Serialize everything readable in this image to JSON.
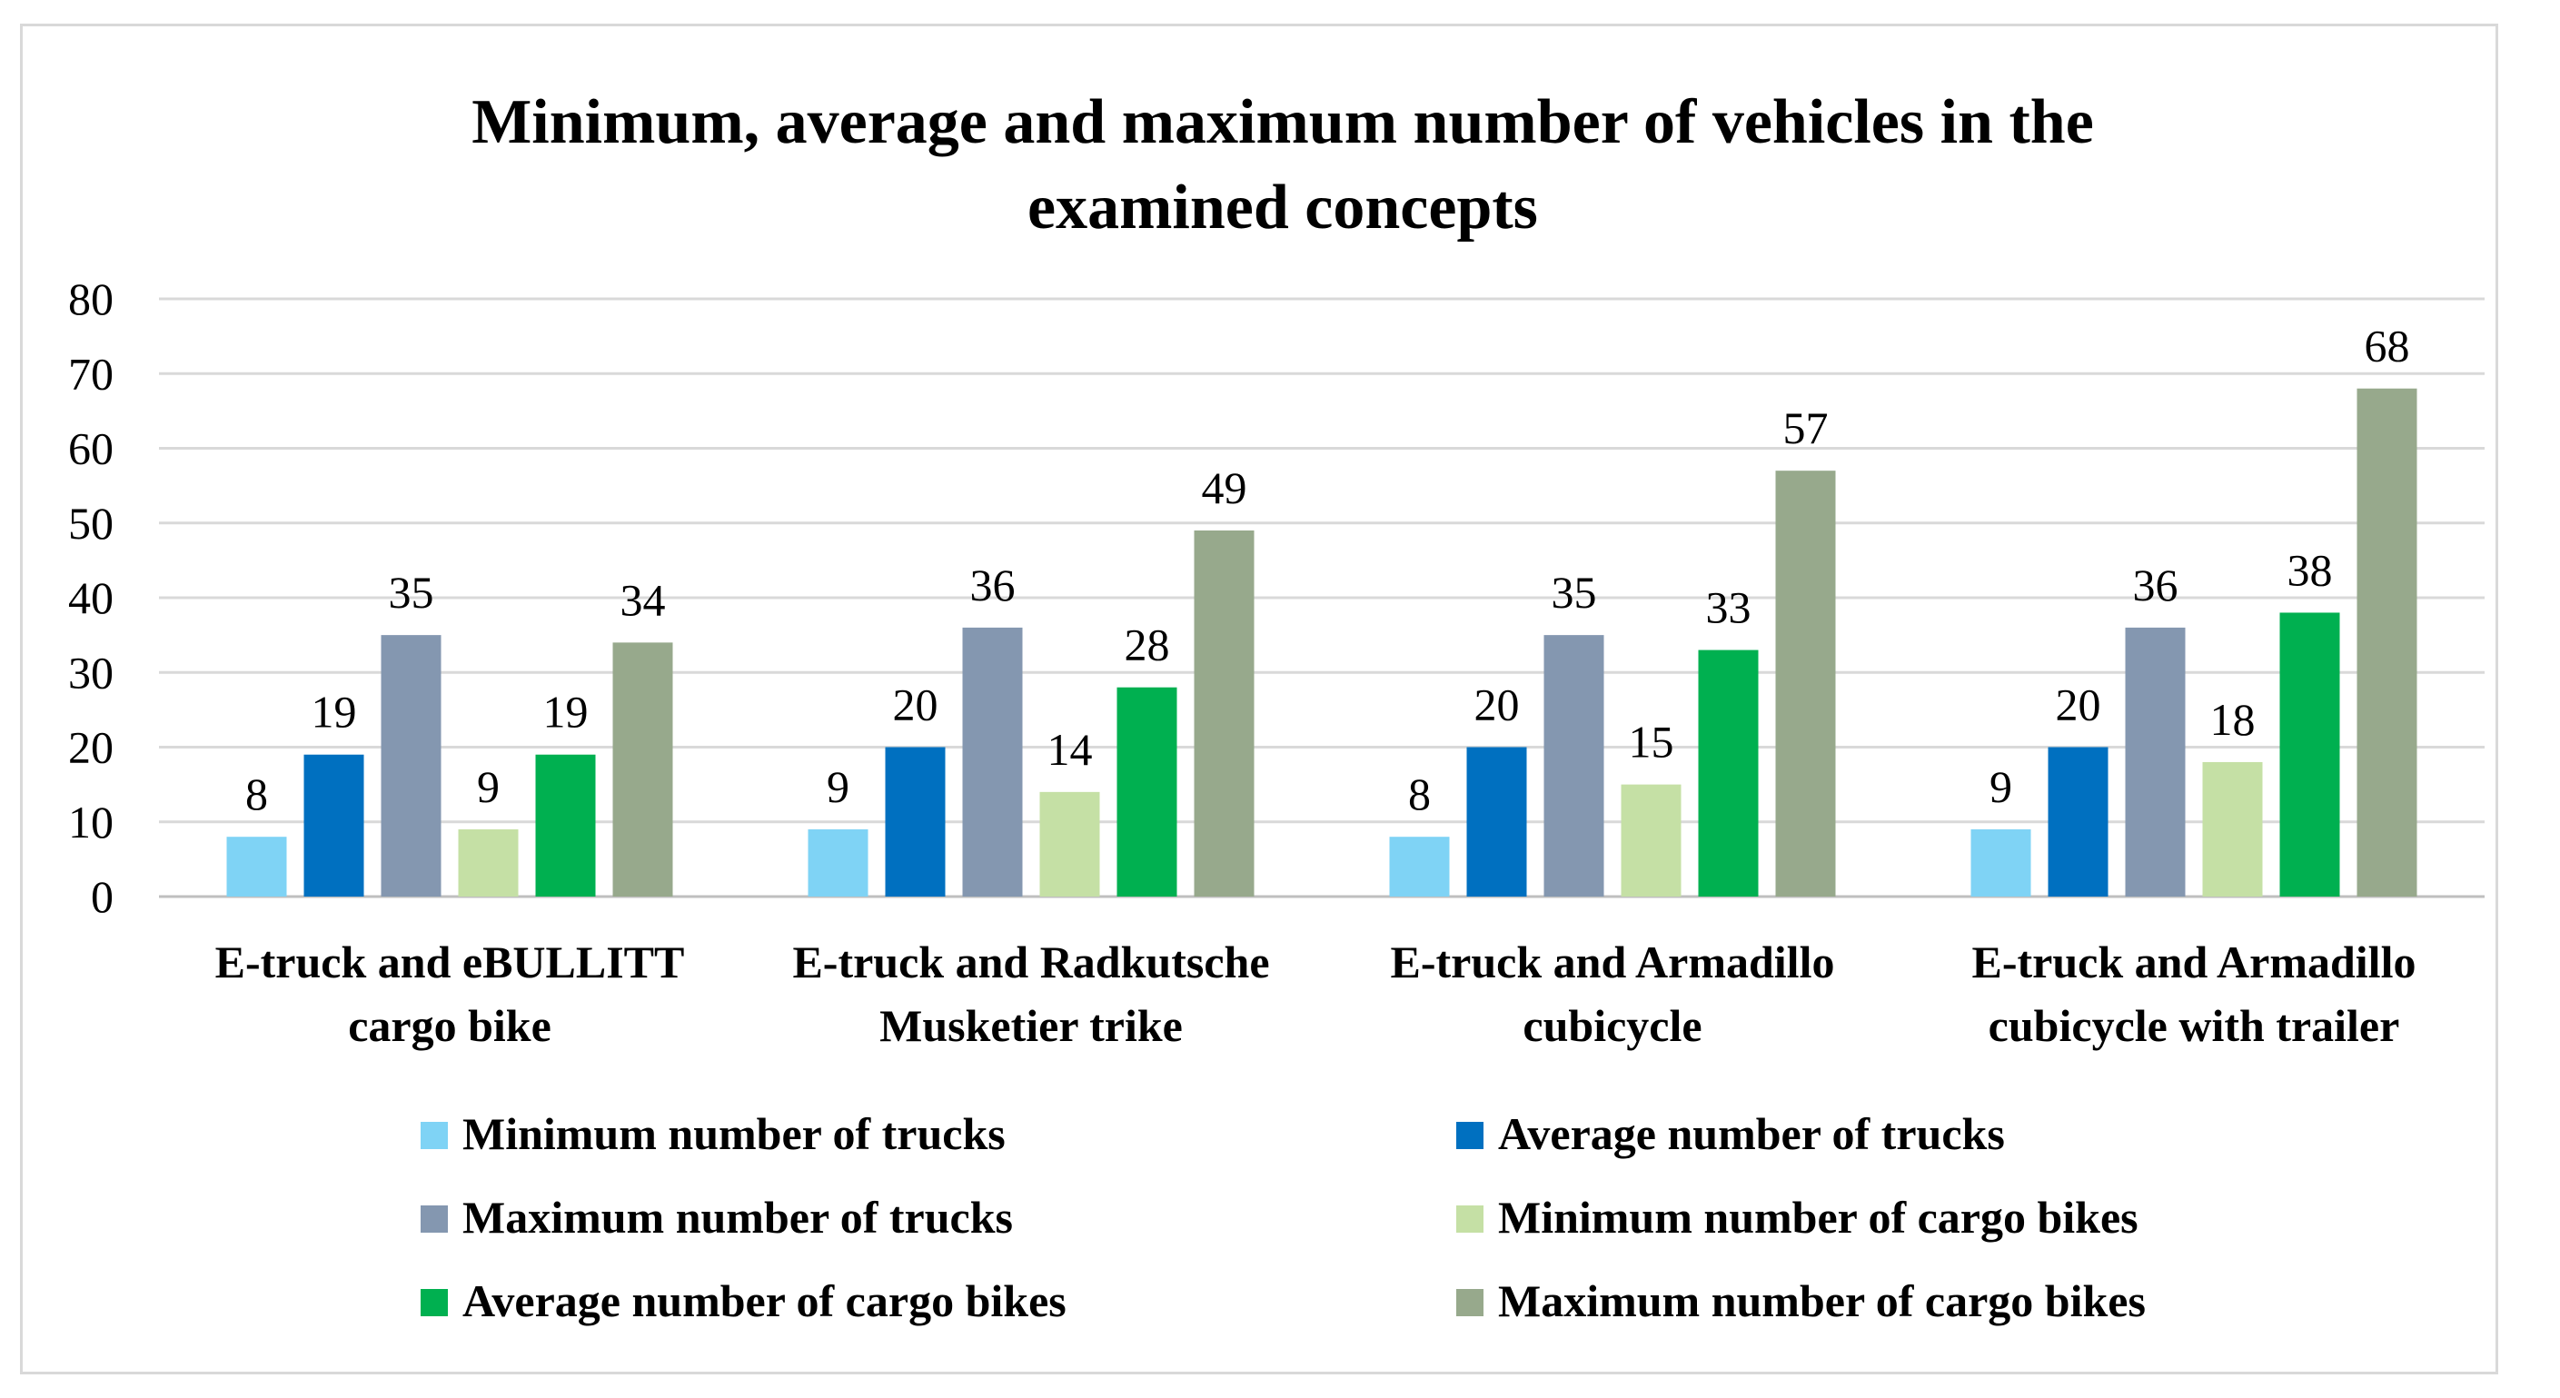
{
  "chart_data": {
    "type": "bar",
    "title": "Minimum, average and maximum number of vehicles in the examined concepts",
    "title_lines": [
      "Minimum, average and maximum number of vehicles in the",
      "examined concepts"
    ],
    "categories": [
      "E-truck and eBULLITT cargo bike",
      "E-truck and Radkutsche Musketier trike",
      "E-truck and Armadillo cubicycle",
      "E-truck and Armadillo cubicycle with trailer"
    ],
    "category_lines": [
      [
        "E-truck and eBULLITT",
        "cargo bike"
      ],
      [
        "E-truck and Radkutsche",
        "Musketier trike"
      ],
      [
        "E-truck and Armadillo",
        "cubicycle"
      ],
      [
        "E-truck and Armadillo",
        "cubicycle with trailer"
      ]
    ],
    "series": [
      {
        "name": "Minimum number of trucks",
        "color": "#7fd3f5",
        "values": [
          8,
          9,
          8,
          9
        ]
      },
      {
        "name": "Average number of trucks",
        "color": "#0070c0",
        "values": [
          19,
          20,
          20,
          20
        ]
      },
      {
        "name": "Maximum number of trucks",
        "color": "#8497b0",
        "values": [
          35,
          36,
          35,
          36
        ]
      },
      {
        "name": "Minimum number of cargo bikes",
        "color": "#c5e0a5",
        "values": [
          9,
          14,
          15,
          18
        ]
      },
      {
        "name": "Average number of cargo bikes",
        "color": "#00b050",
        "values": [
          19,
          28,
          33,
          38
        ]
      },
      {
        "name": "Maximum number of cargo bikes",
        "color": "#97a98c",
        "values": [
          34,
          49,
          57,
          68
        ]
      }
    ],
    "ylim": [
      0,
      80
    ],
    "yticks": [
      0,
      10,
      20,
      30,
      40,
      50,
      60,
      70,
      80
    ],
    "xlabel": "",
    "ylabel": "",
    "grid": true,
    "legend_position": "bottom"
  }
}
